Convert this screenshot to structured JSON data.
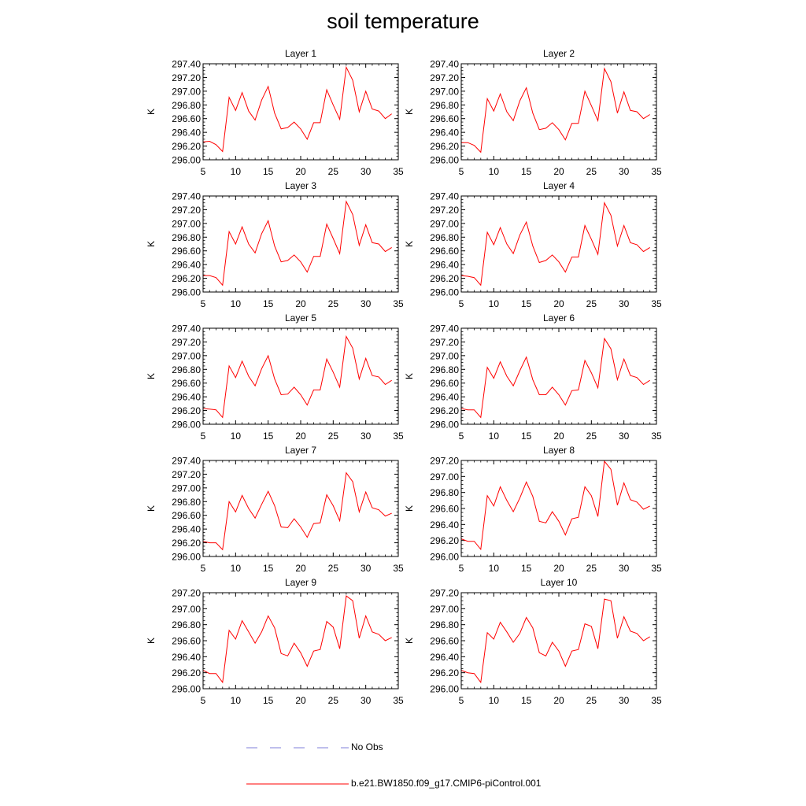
{
  "title": "soil temperature",
  "legend": [
    {
      "name": "No Obs",
      "color": "#7f7fd8",
      "style": "dashed"
    },
    {
      "name": "b.e21.BW1850.f09_g17.CMIP6-piControl.001",
      "color": "#ff0000",
      "style": "solid"
    }
  ],
  "series_color": "#ff0000",
  "chart_data": [
    {
      "type": "line",
      "title": "Layer 1",
      "ylabel": "K",
      "xlim": [
        5,
        35
      ],
      "ylim": [
        296.0,
        297.4
      ],
      "xticks": [
        5,
        10,
        15,
        20,
        25,
        30,
        35
      ],
      "yticks": [
        "296.00",
        "296.20",
        "296.40",
        "296.60",
        "296.80",
        "297.00",
        "297.20",
        "297.40"
      ],
      "x": [
        5,
        6,
        7,
        8,
        9,
        10,
        11,
        12,
        13,
        14,
        15,
        16,
        17,
        18,
        19,
        20,
        21,
        22,
        23,
        24,
        25,
        26,
        27,
        28,
        29,
        30,
        31,
        32,
        33,
        34
      ],
      "values": [
        296.26,
        296.27,
        296.22,
        296.12,
        296.91,
        296.72,
        296.98,
        296.71,
        296.58,
        296.87,
        297.07,
        296.68,
        296.45,
        296.47,
        296.55,
        296.45,
        296.3,
        296.54,
        296.54,
        297.02,
        296.8,
        296.59,
        297.35,
        297.16,
        296.7,
        297.0,
        296.74,
        296.71,
        296.6,
        296.67
      ]
    },
    {
      "type": "line",
      "title": "Layer 2",
      "ylabel": "K",
      "xlim": [
        5,
        35
      ],
      "ylim": [
        296.0,
        297.4
      ],
      "xticks": [
        5,
        10,
        15,
        20,
        25,
        30,
        35
      ],
      "yticks": [
        "296.00",
        "296.20",
        "296.40",
        "296.60",
        "296.80",
        "297.00",
        "297.20",
        "297.40"
      ],
      "x": [
        5,
        6,
        7,
        8,
        9,
        10,
        11,
        12,
        13,
        14,
        15,
        16,
        17,
        18,
        19,
        20,
        21,
        22,
        23,
        24,
        25,
        26,
        27,
        28,
        29,
        30,
        31,
        32,
        33,
        34
      ],
      "values": [
        296.25,
        296.25,
        296.21,
        296.11,
        296.89,
        296.71,
        296.96,
        296.7,
        296.57,
        296.86,
        297.05,
        296.68,
        296.44,
        296.46,
        296.54,
        296.44,
        296.29,
        296.53,
        296.53,
        297.0,
        296.79,
        296.57,
        297.33,
        297.14,
        296.68,
        296.99,
        296.72,
        296.7,
        296.6,
        296.66
      ]
    },
    {
      "type": "line",
      "title": "Layer 3",
      "ylabel": "K",
      "xlim": [
        5,
        35
      ],
      "ylim": [
        296.0,
        297.4
      ],
      "xticks": [
        5,
        10,
        15,
        20,
        25,
        30,
        35
      ],
      "yticks": [
        "296.00",
        "296.20",
        "296.40",
        "296.60",
        "296.80",
        "297.00",
        "297.20",
        "297.40"
      ],
      "x": [
        5,
        6,
        7,
        8,
        9,
        10,
        11,
        12,
        13,
        14,
        15,
        16,
        17,
        18,
        19,
        20,
        21,
        22,
        23,
        24,
        25,
        26,
        27,
        28,
        29,
        30,
        31,
        32,
        33,
        34
      ],
      "values": [
        296.24,
        296.24,
        296.21,
        296.1,
        296.88,
        296.7,
        296.95,
        296.7,
        296.57,
        296.85,
        297.04,
        296.67,
        296.44,
        296.46,
        296.54,
        296.44,
        296.29,
        296.52,
        296.52,
        296.99,
        296.78,
        296.56,
        297.32,
        297.13,
        296.68,
        296.98,
        296.72,
        296.7,
        296.59,
        296.65
      ]
    },
    {
      "type": "line",
      "title": "Layer 4",
      "ylabel": "K",
      "xlim": [
        5,
        35
      ],
      "ylim": [
        296.0,
        297.4
      ],
      "xticks": [
        5,
        10,
        15,
        20,
        25,
        30,
        35
      ],
      "yticks": [
        "296.00",
        "296.20",
        "296.40",
        "296.60",
        "296.80",
        "297.00",
        "297.20",
        "297.40"
      ],
      "x": [
        5,
        6,
        7,
        8,
        9,
        10,
        11,
        12,
        13,
        14,
        15,
        16,
        17,
        18,
        19,
        20,
        21,
        22,
        23,
        24,
        25,
        26,
        27,
        28,
        29,
        30,
        31,
        32,
        33,
        34
      ],
      "values": [
        296.24,
        296.23,
        296.21,
        296.1,
        296.87,
        296.69,
        296.94,
        296.7,
        296.56,
        296.83,
        297.02,
        296.67,
        296.43,
        296.46,
        296.54,
        296.44,
        296.29,
        296.51,
        296.51,
        296.97,
        296.77,
        296.55,
        297.3,
        297.12,
        296.67,
        296.97,
        296.72,
        296.69,
        296.59,
        296.65
      ]
    },
    {
      "type": "line",
      "title": "Layer 5",
      "ylabel": "K",
      "xlim": [
        5,
        35
      ],
      "ylim": [
        296.0,
        297.4
      ],
      "xticks": [
        5,
        10,
        15,
        20,
        25,
        30,
        35
      ],
      "yticks": [
        "296.00",
        "296.20",
        "296.40",
        "296.60",
        "296.80",
        "297.00",
        "297.20",
        "297.40"
      ],
      "x": [
        5,
        6,
        7,
        8,
        9,
        10,
        11,
        12,
        13,
        14,
        15,
        16,
        17,
        18,
        19,
        20,
        21,
        22,
        23,
        24,
        25,
        26,
        27,
        28,
        29,
        30,
        31,
        32,
        33,
        34
      ],
      "values": [
        296.23,
        296.22,
        296.21,
        296.1,
        296.85,
        296.68,
        296.92,
        296.7,
        296.56,
        296.81,
        297.0,
        296.66,
        296.43,
        296.44,
        296.54,
        296.43,
        296.28,
        296.5,
        296.5,
        296.95,
        296.76,
        296.54,
        297.28,
        297.11,
        296.66,
        296.96,
        296.71,
        296.69,
        296.58,
        296.64
      ]
    },
    {
      "type": "line",
      "title": "Layer 6",
      "ylabel": "K",
      "xlim": [
        5,
        35
      ],
      "ylim": [
        296.0,
        297.4
      ],
      "xticks": [
        5,
        10,
        15,
        20,
        25,
        30,
        35
      ],
      "yticks": [
        "296.00",
        "296.20",
        "296.40",
        "296.60",
        "296.80",
        "297.00",
        "297.20",
        "297.40"
      ],
      "x": [
        5,
        6,
        7,
        8,
        9,
        10,
        11,
        12,
        13,
        14,
        15,
        16,
        17,
        18,
        19,
        20,
        21,
        22,
        23,
        24,
        25,
        26,
        27,
        28,
        29,
        30,
        31,
        32,
        33,
        34
      ],
      "values": [
        296.23,
        296.21,
        296.21,
        296.1,
        296.83,
        296.67,
        296.91,
        296.7,
        296.56,
        296.78,
        296.98,
        296.65,
        296.43,
        296.43,
        296.54,
        296.43,
        296.28,
        296.49,
        296.5,
        296.93,
        296.75,
        296.53,
        297.25,
        297.1,
        296.65,
        296.95,
        296.71,
        296.68,
        296.58,
        296.64
      ]
    },
    {
      "type": "line",
      "title": "Layer 7",
      "ylabel": "K",
      "xlim": [
        5,
        35
      ],
      "ylim": [
        296.0,
        297.4
      ],
      "xticks": [
        5,
        10,
        15,
        20,
        25,
        30,
        35
      ],
      "yticks": [
        "296.00",
        "296.20",
        "296.40",
        "296.60",
        "296.80",
        "297.00",
        "297.20",
        "297.40"
      ],
      "x": [
        5,
        6,
        7,
        8,
        9,
        10,
        11,
        12,
        13,
        14,
        15,
        16,
        17,
        18,
        19,
        20,
        21,
        22,
        23,
        24,
        25,
        26,
        27,
        28,
        29,
        30,
        31,
        32,
        33,
        34
      ],
      "values": [
        296.22,
        296.2,
        296.2,
        296.1,
        296.8,
        296.65,
        296.89,
        296.7,
        296.56,
        296.76,
        296.95,
        296.74,
        296.43,
        296.42,
        296.55,
        296.43,
        296.28,
        296.48,
        296.49,
        296.9,
        296.74,
        296.52,
        297.22,
        297.09,
        296.65,
        296.94,
        296.71,
        296.68,
        296.59,
        296.63
      ]
    },
    {
      "type": "line",
      "title": "Layer 8",
      "ylabel": "K",
      "xlim": [
        5,
        35
      ],
      "ylim": [
        296.0,
        297.2
      ],
      "xticks": [
        5,
        10,
        15,
        20,
        25,
        30,
        35
      ],
      "yticks": [
        "296.00",
        "296.20",
        "296.40",
        "296.60",
        "296.80",
        "297.00",
        "297.20"
      ],
      "x": [
        5,
        6,
        7,
        8,
        9,
        10,
        11,
        12,
        13,
        14,
        15,
        16,
        17,
        18,
        19,
        20,
        21,
        22,
        23,
        24,
        25,
        26,
        27,
        28,
        29,
        30,
        31,
        32,
        33,
        34
      ],
      "values": [
        296.22,
        296.19,
        296.19,
        296.09,
        296.76,
        296.63,
        296.87,
        296.7,
        296.56,
        296.73,
        296.93,
        296.75,
        296.44,
        296.42,
        296.56,
        296.44,
        296.27,
        296.47,
        296.49,
        296.87,
        296.76,
        296.5,
        297.19,
        297.09,
        296.64,
        296.92,
        296.71,
        296.68,
        296.59,
        296.63
      ]
    },
    {
      "type": "line",
      "title": "Layer 9",
      "ylabel": "K",
      "xlim": [
        5,
        35
      ],
      "ylim": [
        296.0,
        297.2
      ],
      "xticks": [
        5,
        10,
        15,
        20,
        25,
        30,
        35
      ],
      "yticks": [
        "296.00",
        "296.20",
        "296.40",
        "296.60",
        "296.80",
        "297.00",
        "297.20"
      ],
      "x": [
        5,
        6,
        7,
        8,
        9,
        10,
        11,
        12,
        13,
        14,
        15,
        16,
        17,
        18,
        19,
        20,
        21,
        22,
        23,
        24,
        25,
        26,
        27,
        28,
        29,
        30,
        31,
        32,
        33,
        34
      ],
      "values": [
        296.23,
        296.19,
        296.19,
        296.08,
        296.73,
        296.62,
        296.85,
        296.71,
        296.57,
        296.71,
        296.91,
        296.76,
        296.44,
        296.41,
        296.57,
        296.45,
        296.28,
        296.47,
        296.49,
        296.84,
        296.77,
        296.5,
        297.16,
        297.1,
        296.63,
        296.91,
        296.71,
        296.68,
        296.6,
        296.64
      ]
    },
    {
      "type": "line",
      "title": "Layer 10",
      "ylabel": "K",
      "xlim": [
        5,
        35
      ],
      "ylim": [
        296.0,
        297.2
      ],
      "xticks": [
        5,
        10,
        15,
        20,
        25,
        30,
        35
      ],
      "yticks": [
        "296.00",
        "296.20",
        "296.40",
        "296.60",
        "296.80",
        "297.00",
        "297.20"
      ],
      "x": [
        5,
        6,
        7,
        8,
        9,
        10,
        11,
        12,
        13,
        14,
        15,
        16,
        17,
        18,
        19,
        20,
        21,
        22,
        23,
        24,
        25,
        26,
        27,
        28,
        29,
        30,
        31,
        32,
        33,
        34
      ],
      "values": [
        296.23,
        296.2,
        296.19,
        296.08,
        296.7,
        296.62,
        296.83,
        296.71,
        296.58,
        296.69,
        296.89,
        296.76,
        296.45,
        296.41,
        296.58,
        296.47,
        296.28,
        296.47,
        296.49,
        296.81,
        296.78,
        296.5,
        297.12,
        297.1,
        296.63,
        296.9,
        296.72,
        296.69,
        296.6,
        296.65
      ]
    }
  ]
}
